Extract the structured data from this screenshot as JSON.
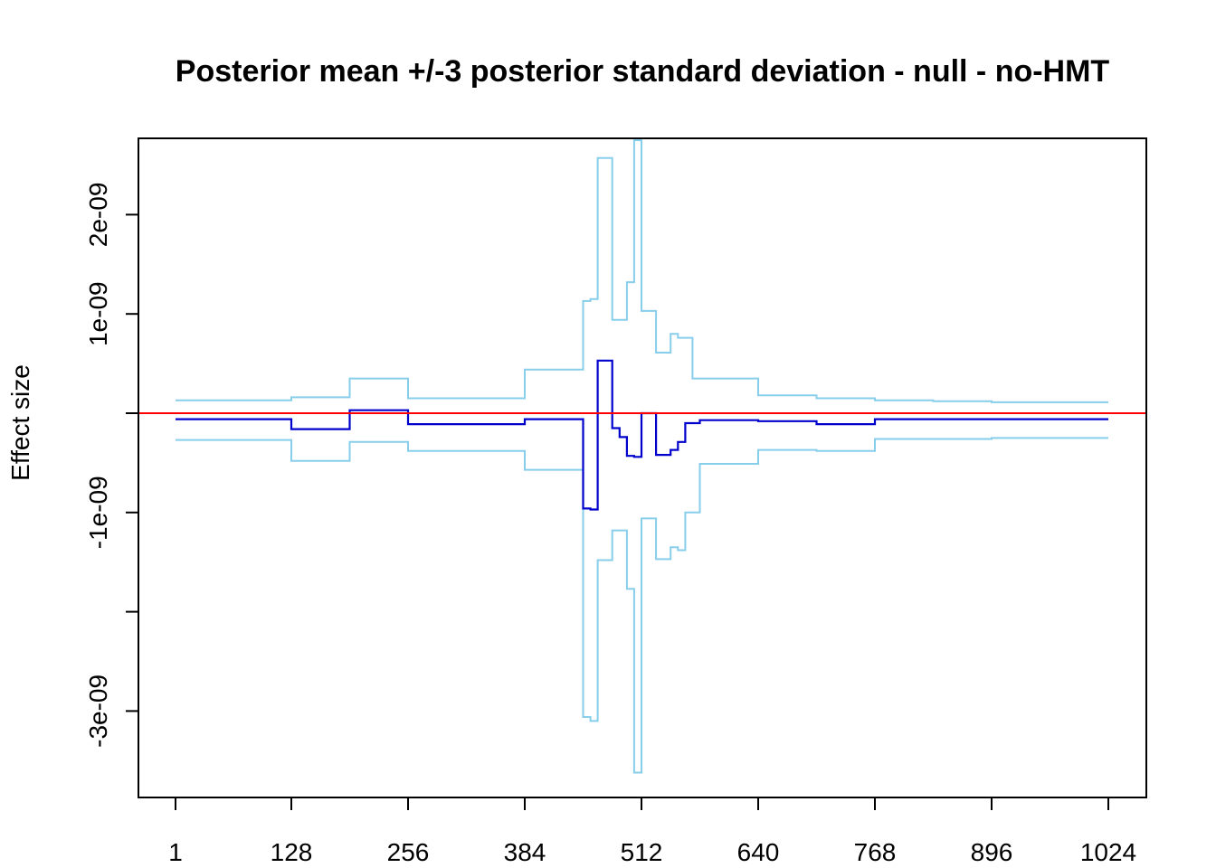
{
  "chart_data": {
    "type": "line",
    "title": "Posterior mean +/-3 posterior standard deviation - null - no-HMT",
    "xlabel": "",
    "ylabel": "Effect size",
    "xlim": [
      -40,
      1064
    ],
    "ylim": [
      -3.85e-09,
      2.8e-09
    ],
    "x_ticks": [
      1,
      128,
      256,
      384,
      512,
      640,
      768,
      896,
      1024
    ],
    "x_tick_labels": [
      "1",
      "128",
      "256",
      "384",
      "512",
      "640",
      "768",
      "896",
      "1024"
    ],
    "y_ticks": [
      -3e-09,
      -2e-09,
      -1e-09,
      0,
      1e-09,
      2e-09
    ],
    "y_tick_labels": [
      "-3e-09",
      "",
      "-1e-09",
      "",
      "1e-09",
      "2e-09"
    ],
    "grid": false,
    "reference_line": {
      "y": 0,
      "color": "#ff0000"
    },
    "series": [
      {
        "key": "upper",
        "color": "#87ceeb",
        "points": [
          [
            1,
            1.3e-10
          ],
          [
            128,
            1.3e-10
          ],
          [
            128,
            1.6e-10
          ],
          [
            192,
            1.6e-10
          ],
          [
            192,
            3.5e-10
          ],
          [
            256,
            3.5e-10
          ],
          [
            256,
            1.5e-10
          ],
          [
            384,
            1.5e-10
          ],
          [
            384,
            4.4e-10
          ],
          [
            448,
            4.4e-10
          ],
          [
            448,
            1.13e-09
          ],
          [
            456,
            1.13e-09
          ],
          [
            456,
            1.15e-09
          ],
          [
            464,
            1.15e-09
          ],
          [
            464,
            2.57e-09
          ],
          [
            480,
            2.57e-09
          ],
          [
            480,
            9.4e-10
          ],
          [
            496,
            9.4e-10
          ],
          [
            496,
            1.32e-09
          ],
          [
            504,
            1.32e-09
          ],
          [
            504,
            2.75e-09
          ],
          [
            512,
            2.75e-09
          ],
          [
            512,
            1.03e-09
          ],
          [
            528,
            1.03e-09
          ],
          [
            528,
            6.1e-10
          ],
          [
            544,
            6.1e-10
          ],
          [
            544,
            8e-10
          ],
          [
            552,
            8e-10
          ],
          [
            552,
            7.6e-10
          ],
          [
            568,
            7.6e-10
          ],
          [
            568,
            3.5e-10
          ],
          [
            640,
            3.5e-10
          ],
          [
            640,
            1.8e-10
          ],
          [
            704,
            1.8e-10
          ],
          [
            704,
            1.5e-10
          ],
          [
            768,
            1.5e-10
          ],
          [
            768,
            1.3e-10
          ],
          [
            832,
            1.3e-10
          ],
          [
            832,
            1.2e-10
          ],
          [
            896,
            1.2e-10
          ],
          [
            896,
            1.1e-10
          ],
          [
            1024,
            1.1e-10
          ]
        ]
      },
      {
        "key": "lower",
        "color": "#87ceeb",
        "points": [
          [
            1,
            -2.7e-10
          ],
          [
            128,
            -2.7e-10
          ],
          [
            128,
            -4.8e-10
          ],
          [
            192,
            -4.8e-10
          ],
          [
            192,
            -2.9e-10
          ],
          [
            256,
            -2.9e-10
          ],
          [
            256,
            -3.8e-10
          ],
          [
            384,
            -3.8e-10
          ],
          [
            384,
            -5.7e-10
          ],
          [
            448,
            -5.7e-10
          ],
          [
            448,
            -3.06e-09
          ],
          [
            456,
            -3.06e-09
          ],
          [
            456,
            -3.1e-09
          ],
          [
            464,
            -3.1e-09
          ],
          [
            464,
            -1.48e-09
          ],
          [
            480,
            -1.48e-09
          ],
          [
            480,
            -1.18e-09
          ],
          [
            496,
            -1.18e-09
          ],
          [
            496,
            -1.77e-09
          ],
          [
            504,
            -1.77e-09
          ],
          [
            504,
            -3.62e-09
          ],
          [
            512,
            -3.62e-09
          ],
          [
            512,
            -1.06e-09
          ],
          [
            528,
            -1.06e-09
          ],
          [
            528,
            -1.47e-09
          ],
          [
            544,
            -1.47e-09
          ],
          [
            544,
            -1.35e-09
          ],
          [
            552,
            -1.35e-09
          ],
          [
            552,
            -1.38e-09
          ],
          [
            560,
            -1.38e-09
          ],
          [
            560,
            -1e-09
          ],
          [
            576,
            -1e-09
          ],
          [
            576,
            -5.1e-10
          ],
          [
            640,
            -5.1e-10
          ],
          [
            640,
            -3.7e-10
          ],
          [
            704,
            -3.7e-10
          ],
          [
            704,
            -3.8e-10
          ],
          [
            768,
            -3.8e-10
          ],
          [
            768,
            -2.6e-10
          ],
          [
            896,
            -2.6e-10
          ],
          [
            896,
            -2.5e-10
          ],
          [
            1024,
            -2.5e-10
          ]
        ]
      },
      {
        "key": "mean",
        "color": "#0000cd",
        "points": [
          [
            1,
            -6e-11
          ],
          [
            128,
            -6e-11
          ],
          [
            128,
            -1.6e-10
          ],
          [
            192,
            -1.6e-10
          ],
          [
            192,
            3e-11
          ],
          [
            256,
            3e-11
          ],
          [
            256,
            -1.1e-10
          ],
          [
            384,
            -1.1e-10
          ],
          [
            384,
            -6e-11
          ],
          [
            448,
            -6e-11
          ],
          [
            448,
            -9.6e-10
          ],
          [
            456,
            -9.6e-10
          ],
          [
            456,
            -9.7e-10
          ],
          [
            464,
            -9.7e-10
          ],
          [
            464,
            5.3e-10
          ],
          [
            480,
            5.3e-10
          ],
          [
            480,
            -1.5e-10
          ],
          [
            488,
            -1.5e-10
          ],
          [
            488,
            -2.4e-10
          ],
          [
            496,
            -2.4e-10
          ],
          [
            496,
            -4.3e-10
          ],
          [
            504,
            -4.3e-10
          ],
          [
            504,
            -4.4e-10
          ],
          [
            512,
            -4.4e-10
          ],
          [
            512,
            0
          ],
          [
            528,
            0
          ],
          [
            528,
            -4.2e-10
          ],
          [
            544,
            -4.2e-10
          ],
          [
            544,
            -3.7e-10
          ],
          [
            552,
            -3.7e-10
          ],
          [
            552,
            -2.9e-10
          ],
          [
            560,
            -2.9e-10
          ],
          [
            560,
            -1e-10
          ],
          [
            576,
            -1e-10
          ],
          [
            576,
            -7e-11
          ],
          [
            640,
            -7e-11
          ],
          [
            640,
            -8e-11
          ],
          [
            704,
            -8e-11
          ],
          [
            704,
            -1.1e-10
          ],
          [
            768,
            -1.1e-10
          ],
          [
            768,
            -6e-11
          ],
          [
            1024,
            -6e-11
          ]
        ]
      }
    ]
  }
}
